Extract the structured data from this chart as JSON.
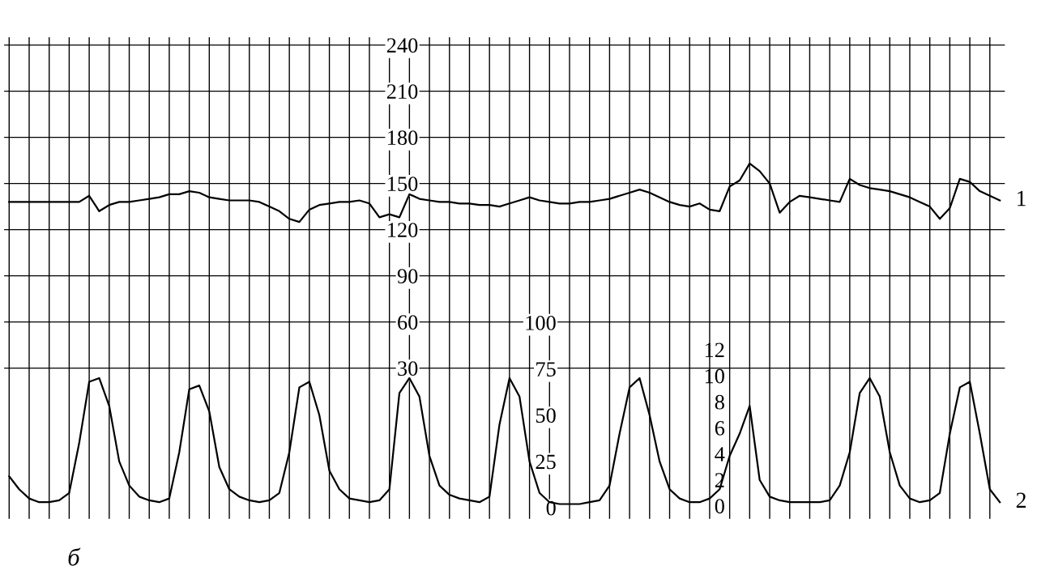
{
  "chart_data": {
    "type": "line",
    "categories": [
      null,
      null,
      null,
      null,
      null,
      null,
      null,
      null,
      null,
      null,
      null,
      null,
      null,
      null,
      null,
      null,
      null,
      null,
      null,
      null,
      null,
      null,
      null,
      null,
      null,
      null,
      null,
      null,
      null,
      null,
      null,
      null,
      null,
      null,
      null,
      null,
      null,
      null,
      null,
      null,
      null,
      null,
      null,
      null,
      null,
      null,
      null,
      null,
      null,
      null,
      null,
      null,
      null,
      null,
      null,
      null,
      null,
      null,
      null,
      null,
      null,
      null,
      null,
      null,
      null,
      null,
      null,
      null,
      null,
      null,
      null,
      null,
      null,
      null,
      null,
      null,
      null,
      null,
      null,
      null,
      null,
      null,
      null,
      null,
      null,
      null,
      null,
      null,
      null,
      null,
      null,
      null,
      null,
      null,
      null,
      null,
      null,
      null,
      null,
      null
    ],
    "series": [
      {
        "name": "1",
        "color": "#000000",
        "values": [
          138,
          138,
          138,
          138,
          138,
          138,
          138,
          138,
          142,
          132,
          136,
          138,
          138,
          139,
          140,
          141,
          143,
          143,
          145,
          144,
          141,
          140,
          139,
          139,
          139,
          138,
          135,
          132,
          127,
          125,
          133,
          136,
          137,
          138,
          138,
          139,
          137,
          128,
          130,
          128,
          143,
          140,
          139,
          138,
          138,
          137,
          137,
          136,
          136,
          135,
          137,
          139,
          141,
          139,
          138,
          137,
          137,
          138,
          138,
          139,
          140,
          142,
          144,
          146,
          144,
          141,
          138,
          136,
          135,
          137,
          133,
          132,
          148,
          152,
          163,
          158,
          150,
          131,
          138,
          142,
          141,
          140,
          139,
          138,
          153,
          149,
          147,
          146,
          145,
          143,
          141,
          138,
          135,
          127,
          134,
          153,
          151,
          145,
          142,
          139
        ]
      },
      {
        "name": "2",
        "color": "#000000",
        "axis": "y2",
        "values": [
          17,
          10,
          5,
          3,
          3,
          4,
          8,
          35,
          68,
          70,
          55,
          25,
          12,
          6,
          4,
          3,
          5,
          30,
          64,
          66,
          52,
          22,
          10,
          6,
          4,
          3,
          4,
          8,
          30,
          65,
          68,
          50,
          20,
          10,
          5,
          4,
          3,
          4,
          10,
          62,
          70,
          60,
          28,
          12,
          7,
          5,
          4,
          3,
          6,
          45,
          70,
          60,
          25,
          8,
          3,
          2,
          2,
          2,
          3,
          4,
          12,
          40,
          65,
          70,
          50,
          25,
          10,
          5,
          3,
          3,
          5,
          10,
          28,
          40,
          55,
          15,
          6,
          4,
          3,
          3,
          3,
          3,
          4,
          12,
          30,
          62,
          70,
          60,
          30,
          12,
          5,
          3,
          4,
          8,
          40,
          65,
          68,
          40,
          10,
          3
        ]
      }
    ],
    "ylim": [
      -68,
      245
    ],
    "yticks": [
      30,
      60,
      90,
      120,
      150,
      180,
      210,
      240
    ],
    "y2lim": [
      -6,
      254
    ],
    "y2ticks": [
      0,
      25,
      50,
      75,
      100
    ],
    "y3lim": [
      -1,
      36
    ],
    "y3ticks": [
      0,
      2,
      4,
      6,
      8,
      10,
      12
    ],
    "grid": true,
    "legend": false,
    "marker": "none",
    "line_style": "solid",
    "annotations": [
      "б"
    ]
  }
}
